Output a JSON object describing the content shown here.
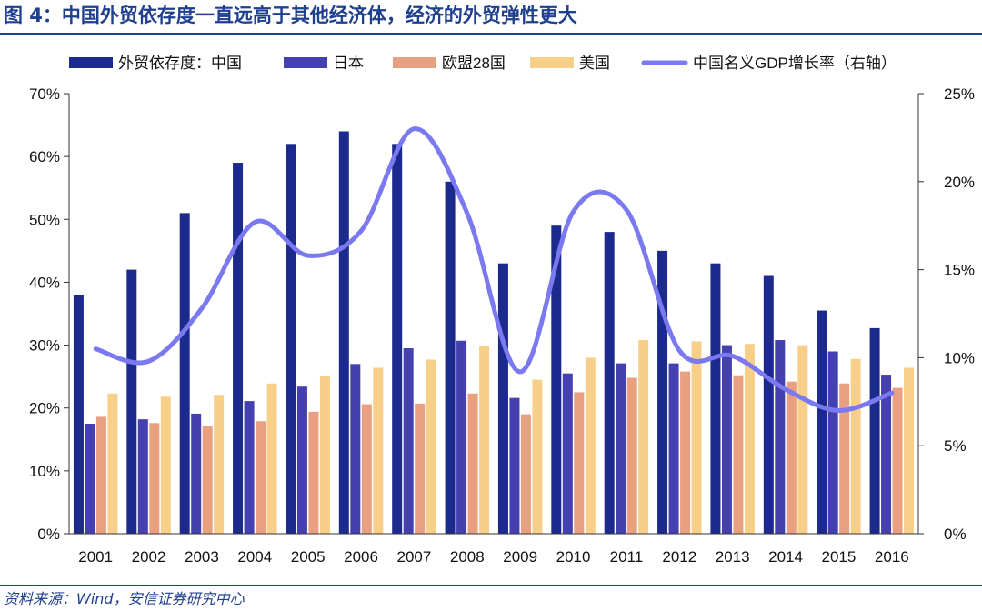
{
  "title": "图 4：中国外贸依存度一直远高于其他经济体，经济的外贸弹性更大",
  "source": "资料来源：Wind，安信证券研究中心",
  "chart_data": {
    "type": "bar",
    "categories": [
      "2001",
      "2002",
      "2003",
      "2004",
      "2005",
      "2006",
      "2007",
      "2008",
      "2009",
      "2010",
      "2011",
      "2012",
      "2013",
      "2014",
      "2015",
      "2016"
    ],
    "series": [
      {
        "name": "外贸依存度：中国",
        "color": "#1b2a8c",
        "axis": "left",
        "values": [
          38,
          42,
          51,
          59,
          62,
          64,
          62,
          56,
          43,
          49,
          48,
          45,
          43,
          41,
          35.5,
          32.7
        ]
      },
      {
        "name": "日本",
        "color": "#4440b0",
        "axis": "left",
        "values": [
          17.5,
          18.2,
          19.1,
          21.1,
          23.4,
          27,
          29.5,
          30.7,
          21.6,
          25.5,
          27.1,
          27.1,
          30,
          30.8,
          29,
          25.3
        ]
      },
      {
        "name": "欧盟28国",
        "color": "#e8a080",
        "axis": "left",
        "values": [
          18.6,
          17.6,
          17.1,
          17.9,
          19.4,
          20.6,
          20.7,
          22.3,
          19,
          22.5,
          24.8,
          25.8,
          25.2,
          24.2,
          23.9,
          23.2
        ]
      },
      {
        "name": "美国",
        "color": "#f8cf88",
        "axis": "left",
        "values": [
          22.3,
          21.8,
          22.1,
          23.9,
          25.1,
          26.4,
          27.7,
          29.8,
          24.5,
          28,
          30.8,
          30.6,
          30.2,
          30,
          27.8,
          26.4
        ]
      },
      {
        "name": "中国名义GDP增长率（右轴）",
        "type": "line",
        "color": "#7b79f0",
        "axis": "right",
        "values": [
          10.5,
          9.8,
          12.8,
          17.7,
          15.8,
          17.2,
          23,
          18.2,
          9.2,
          18.3,
          18.4,
          10.4,
          10.1,
          8.2,
          7,
          8
        ]
      }
    ],
    "left_axis": {
      "min": 0,
      "max": 70,
      "step": 10,
      "tick_labels": [
        "0%",
        "10%",
        "20%",
        "30%",
        "40%",
        "50%",
        "60%",
        "70%"
      ]
    },
    "right_axis": {
      "min": 0,
      "max": 25,
      "step": 5,
      "tick_labels": [
        "0%",
        "5%",
        "10%",
        "15%",
        "20%",
        "25%"
      ]
    },
    "grid": false,
    "legend_position": "top"
  }
}
